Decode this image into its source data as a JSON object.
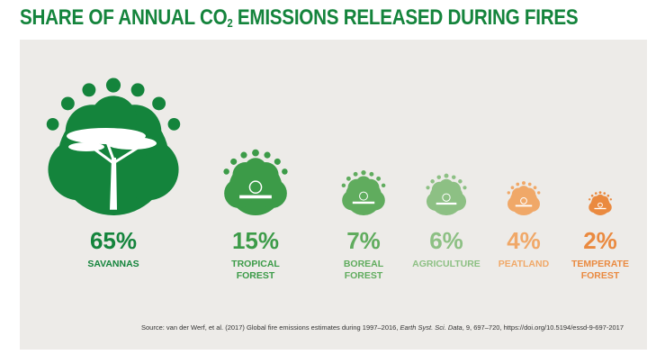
{
  "title": {
    "main": "SHARE OF ANNUAL CO",
    "sub": "2",
    "rest": " EMISSIONS RELEASED DURING FIRES"
  },
  "source": {
    "prefix": "Source: van der Werf, et al. (2017) Global fire emissions estimates during 1997–2016, ",
    "journal": "Earth Syst. Sci. Data",
    "suffix": ", 9, 697–720, https://doi.org/10.5194/essd-9-697-2017"
  },
  "chart_data": {
    "type": "bubble",
    "unit": "%",
    "categories": [
      {
        "label": "65%",
        "name_lines": [
          "SAVANNAS"
        ],
        "value": 65,
        "color": "#14843c",
        "icon": "savanna-tree-icon"
      },
      {
        "label": "15%",
        "name_lines": [
          "TROPICAL",
          "FOREST"
        ],
        "value": 15,
        "color": "#3c9b48",
        "icon": "palm-tree-icon"
      },
      {
        "label": "7%",
        "name_lines": [
          "BOREAL",
          "FOREST"
        ],
        "value": 7,
        "color": "#60ac5e",
        "icon": "conifer-tree-icon"
      },
      {
        "label": "6%",
        "name_lines": [
          "AGRICULTURE"
        ],
        "value": 6,
        "color": "#8dc084",
        "icon": "field-icon"
      },
      {
        "label": "4%",
        "name_lines": [
          "PEATLAND"
        ],
        "value": 4,
        "color": "#f0a868",
        "icon": "peatland-icon"
      },
      {
        "label": "2%",
        "name_lines": [
          "TEMPERATE",
          "FOREST"
        ],
        "value": 2,
        "color": "#ea8a40",
        "icon": "leaf-icon"
      }
    ]
  }
}
